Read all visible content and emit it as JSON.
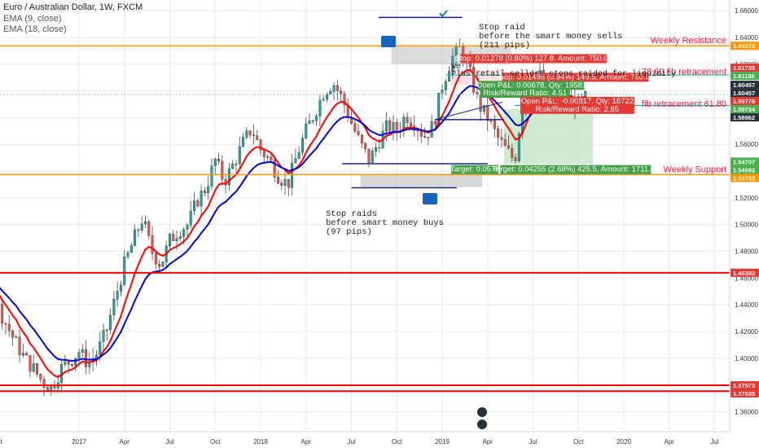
{
  "chart_data": {
    "type": "candlestick",
    "symbol_title": "Euro / Australian Dollar, 1W, FXCM",
    "indicators": [
      "EMA (9, close)",
      "EMA (18, close)"
    ],
    "ylim": [
      1.345,
      1.668
    ],
    "y_ticks": [
      1.36,
      1.38,
      1.4,
      1.42,
      1.44,
      1.46,
      1.48,
      1.5,
      1.52,
      1.54,
      1.56,
      1.58,
      1.6,
      1.62,
      1.64,
      1.66
    ],
    "x_ticks": [
      {
        "label": "Oct",
        "t": 0.55
      },
      {
        "label": "2017",
        "t": 1.0
      },
      {
        "label": "Apr",
        "t": 1.25
      },
      {
        "label": "Jul",
        "t": 1.5
      },
      {
        "label": "Oct",
        "t": 1.75
      },
      {
        "label": "2018",
        "t": 2.0
      },
      {
        "label": "Apr",
        "t": 2.25
      },
      {
        "label": "Jul",
        "t": 2.5
      },
      {
        "label": "Oct",
        "t": 2.75
      },
      {
        "label": "2019",
        "t": 3.0
      },
      {
        "label": "Apr",
        "t": 3.25
      },
      {
        "label": "Jul",
        "t": 3.5
      },
      {
        "label": "Oct",
        "t": 3.75
      },
      {
        "label": "2020",
        "t": 4.0
      },
      {
        "label": "Apr",
        "t": 4.25
      },
      {
        "label": "Jul",
        "t": 4.5
      }
    ],
    "close_path": [
      [
        0.0,
        1.497
      ],
      [
        0.05,
        1.478
      ],
      [
        0.1,
        1.488
      ],
      [
        0.15,
        1.492
      ],
      [
        0.2,
        1.476
      ],
      [
        0.25,
        1.462
      ],
      [
        0.3,
        1.44
      ],
      [
        0.35,
        1.432
      ],
      [
        0.4,
        1.447
      ],
      [
        0.45,
        1.46
      ],
      [
        0.5,
        1.455
      ],
      [
        0.55,
        1.44
      ],
      [
        0.6,
        1.425
      ],
      [
        0.65,
        1.412
      ],
      [
        0.7,
        1.4
      ],
      [
        0.75,
        1.392
      ],
      [
        0.8,
        1.382
      ],
      [
        0.85,
        1.378
      ],
      [
        0.9,
        1.392
      ],
      [
        0.95,
        1.398
      ],
      [
        1.0,
        1.405
      ],
      [
        1.05,
        1.396
      ],
      [
        1.1,
        1.404
      ],
      [
        1.15,
        1.42
      ],
      [
        1.2,
        1.445
      ],
      [
        1.25,
        1.47
      ],
      [
        1.3,
        1.488
      ],
      [
        1.35,
        1.505
      ],
      [
        1.4,
        1.48
      ],
      [
        1.45,
        1.47
      ],
      [
        1.5,
        1.488
      ],
      [
        1.55,
        1.496
      ],
      [
        1.6,
        1.5
      ],
      [
        1.65,
        1.518
      ],
      [
        1.7,
        1.528
      ],
      [
        1.75,
        1.548
      ],
      [
        1.8,
        1.532
      ],
      [
        1.85,
        1.545
      ],
      [
        1.9,
        1.56
      ],
      [
        1.95,
        1.572
      ],
      [
        2.0,
        1.556
      ],
      [
        2.05,
        1.548
      ],
      [
        2.1,
        1.536
      ],
      [
        2.15,
        1.53
      ],
      [
        2.2,
        1.552
      ],
      [
        2.25,
        1.57
      ],
      [
        2.3,
        1.584
      ],
      [
        2.35,
        1.6
      ],
      [
        2.4,
        1.606
      ],
      [
        2.45,
        1.594
      ],
      [
        2.5,
        1.576
      ],
      [
        2.55,
        1.56
      ],
      [
        2.6,
        1.548
      ],
      [
        2.65,
        1.562
      ],
      [
        2.7,
        1.574
      ],
      [
        2.75,
        1.57
      ],
      [
        2.8,
        1.582
      ],
      [
        2.85,
        1.576
      ],
      [
        2.9,
        1.566
      ],
      [
        2.95,
        1.574
      ],
      [
        3.0,
        1.604
      ],
      [
        3.05,
        1.624
      ],
      [
        3.1,
        1.632
      ],
      [
        3.15,
        1.614
      ],
      [
        3.2,
        1.59
      ],
      [
        3.25,
        1.58
      ],
      [
        3.3,
        1.566
      ],
      [
        3.35,
        1.556
      ],
      [
        3.4,
        1.548
      ],
      [
        3.45,
        1.598
      ],
      [
        3.5,
        1.616
      ],
      [
        3.55,
        1.61
      ],
      [
        3.6,
        1.598
      ],
      [
        3.65,
        1.592
      ],
      [
        3.7,
        1.594
      ],
      [
        3.75,
        1.59
      ],
      [
        3.8,
        1.596
      ]
    ],
    "time_mapping": {
      "t_start": 0.0,
      "t_end": 3.8,
      "note": "t = years since Jan 2016; x ticks placed on this scale"
    },
    "horizontal_levels": [
      {
        "price": 1.63373,
        "label": "Weekly Resistance",
        "color": "#ff9800"
      },
      {
        "price": 1.53733,
        "label": "Weekly Support",
        "color": "#ff9800"
      },
      {
        "price": 1.46392,
        "label": "",
        "color": "#ff0000"
      },
      {
        "price": 1.37973,
        "label": "",
        "color": "#ff0000"
      },
      {
        "price": 1.37535,
        "label": "",
        "color": "#ff0000"
      }
    ],
    "fib_labels": [
      {
        "text": "78.60 fib retracement",
        "price": 1.6116,
        "color": "#ff1744"
      },
      {
        "text": "fib retracement 61.80",
        "price": 1.5875,
        "color": "#ff1744"
      }
    ],
    "price_tags": [
      {
        "text": "1.63373",
        "price": 1.63373,
        "bg": "#ff9800"
      },
      {
        "text": "1.61735",
        "price": 1.61735,
        "bg": "#e53935"
      },
      {
        "text": "1.61186",
        "price": 1.61186,
        "bg": "#4caf50"
      },
      {
        "text": "1.60457",
        "price": 1.60457,
        "bg": "#263238"
      },
      {
        "text": "1.60457",
        "price": 1.60457,
        "bg": "#263238"
      },
      {
        "text": "1.59779",
        "price": 1.59779,
        "bg": "#e53935"
      },
      {
        "text": "1.59734",
        "price": 1.59734,
        "bg": "#4caf50"
      },
      {
        "text": "1.58962",
        "price": 1.58962,
        "bg": "#263238"
      },
      {
        "text": "1.54707",
        "price": 1.54707,
        "bg": "#4caf50"
      },
      {
        "text": "1.54692",
        "price": 1.54692,
        "bg": "#4caf50"
      },
      {
        "text": "1.53733",
        "price": 1.53733,
        "bg": "#ff9800"
      },
      {
        "text": "1.46392",
        "price": 1.46392,
        "bg": "#e53935"
      },
      {
        "text": "1.37973",
        "price": 1.37973,
        "bg": "#e53935"
      },
      {
        "text": "1.37535",
        "price": 1.37535,
        "bg": "#e53935"
      }
    ],
    "annotations": {
      "stop_raid_top": [
        "Stop raid",
        "before the smart money sells",
        "(211 pips)"
      ],
      "stop_raids_bottom": [
        "Stop raids",
        "before smart money buys",
        "(97 pips)"
      ],
      "retail_note": [
        "We",
        "Plus retail sellers stops raided for liquidity"
      ],
      "boxes": [
        {
          "text": "Stop: 0.01278 (0.80%) 127.8, Amount: 750.01",
          "color": "#e53935"
        },
        {
          "text": "Stop: 0.01495 (0.94%) 149.5, Amount: 750.01",
          "color": "#e53935"
        },
        {
          "text": "Open P&L: 0.00678, Qty: 19581",
          "color": "#43a047"
        },
        {
          "text": "Risk/Reward Ratio: 4.51",
          "color": "#43a047"
        },
        {
          "text": "Open P&L: -0.00817, Qty: 16722",
          "color": "#e53935"
        },
        {
          "text": "Risk/Reward Ratio: 2.85",
          "color": "#e53935"
        },
        {
          "text": "Target: 0.0576",
          "color": "#43a047"
        },
        {
          "text": "Target: 0.04255 (2.68%) 425.5, Amount: 1711.52",
          "color": "#43a047"
        }
      ]
    },
    "colors": {
      "up": "#26a69a",
      "down": "#ef5350",
      "ema9": "#ff0000",
      "ema18": "#0000d6",
      "grid": "#e6e9ec",
      "axis_text": "#333333"
    },
    "grid": true
  }
}
